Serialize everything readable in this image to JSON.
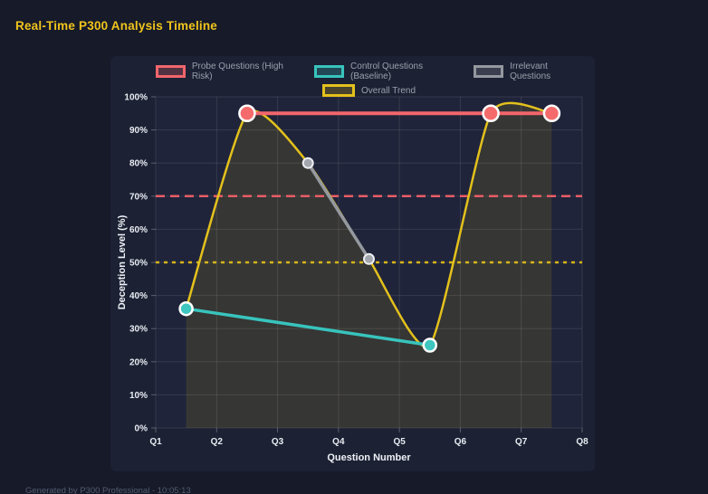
{
  "page_title": "Real-Time P300 Analysis Timeline",
  "footer": "Generated by P300 Professional - 10:05:13",
  "chart_data": {
    "type": "line",
    "title": "Real-Time P300 Analysis Timeline",
    "xlabel": "Question Number",
    "ylabel": "Deception Level (%)",
    "x_ticks": [
      "Q1",
      "Q2",
      "Q3",
      "Q4",
      "Q5",
      "Q6",
      "Q7",
      "Q8"
    ],
    "x_range": [
      1,
      8
    ],
    "y_range": [
      0,
      100
    ],
    "y_tick_step": 10,
    "y_tick_suffix": "%",
    "grid": true,
    "legend_position": "top",
    "series": [
      {
        "name": "Probe Questions (High Risk)",
        "color": "#f2666c",
        "x": [
          2.5,
          6.5,
          7.5
        ],
        "y": [
          95,
          95,
          95
        ],
        "line_width": 4,
        "point_radius": 8.5,
        "point_fill": "#f56b6b",
        "point_stroke": "#ffffff",
        "point_stroke_width": 2.5,
        "smooth": false,
        "swatch_fill": "rgba(242,102,108,0.25)"
      },
      {
        "name": "Control Questions (Baseline)",
        "color": "#38c4bd",
        "x": [
          1.5,
          5.5
        ],
        "y": [
          36,
          25
        ],
        "line_width": 3.5,
        "point_radius": 7,
        "point_fill": "#3ec6c0",
        "point_stroke": "#ffffff",
        "point_stroke_width": 2.5,
        "smooth": false,
        "swatch_fill": "rgba(56,196,189,0.25)"
      },
      {
        "name": "Irrelevant Questions",
        "color": "#94989f",
        "x": [
          3.5,
          4.5
        ],
        "y": [
          80,
          51
        ],
        "line_width": 3.5,
        "point_radius": 5.5,
        "point_fill": "#a3a7ad",
        "point_stroke": "#eceef2",
        "point_stroke_width": 2,
        "smooth": false,
        "swatch_fill": "rgba(148,152,159,0.25)"
      },
      {
        "name": "Overall Trend",
        "color": "#e3c11c",
        "x": [
          1.5,
          2.5,
          3.5,
          4.5,
          5.5,
          6.5,
          7.5
        ],
        "y": [
          36,
          95,
          80,
          51,
          25,
          95,
          95
        ],
        "line_width": 2.5,
        "point_radius": 0,
        "smooth": true,
        "area_fill": "rgba(255,215,0,0.10)",
        "swatch_fill": "rgba(227,193,28,0.22)"
      }
    ],
    "thresholds": [
      {
        "value": 70,
        "color": "#e85d66",
        "dash": "10 6",
        "width": 2.5
      },
      {
        "value": 50,
        "color": "#d7b519",
        "dash": "4 5",
        "width": 2.5
      }
    ],
    "colors": {
      "plot_bg": "#20243a",
      "grid": "rgba(255,255,255,0.10)",
      "tick": "rgba(255,255,255,0.28)",
      "tick_label": "#e9ecf2"
    }
  }
}
